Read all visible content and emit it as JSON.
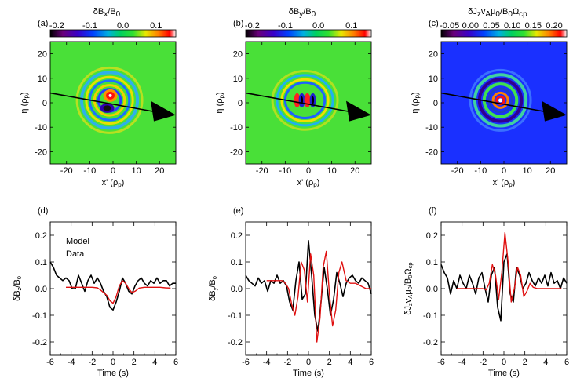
{
  "figure": {
    "panel_titles": [
      "δB",
      "δB",
      "δJ"
    ],
    "title_parts": [
      {
        "main": "δB",
        "sub": "x",
        "rest": "/B",
        "sub2": "0"
      },
      {
        "main": "δB",
        "sub": "y",
        "rest": "/B",
        "sub2": "0"
      },
      {
        "main": "δJ",
        "sub": "z",
        "rest": "v",
        "sub2": "A",
        "rest2": "μ",
        "sub3": "0",
        "rest3": "/B",
        "sub4": "0",
        "rest4": "Ω",
        "sub5": "cp"
      }
    ]
  },
  "top_panels": [
    {
      "label": "(a)",
      "colorbar_ticks": [
        "-0.2",
        "-0.1",
        "0.0",
        "0.1"
      ],
      "colorbar_range": [
        -0.22,
        0.16
      ],
      "x_ticks": [
        "-20",
        "-10",
        "0",
        "10",
        "20"
      ],
      "y_ticks": [
        "20",
        "10",
        "0",
        "-10",
        "-20"
      ],
      "xlabel": "x' (ρ",
      "xlabel_sub": "p",
      "ylabel": "η (ρ",
      "ylabel_sub": "p"
    },
    {
      "label": "(b)",
      "colorbar_ticks": [
        "-0.2",
        "-0.1",
        "0.0",
        "0.1"
      ],
      "colorbar_range": [
        -0.22,
        0.16
      ],
      "x_ticks": [
        "-20",
        "-10",
        "0",
        "10",
        "20"
      ],
      "y_ticks": [
        "20",
        "10",
        "0",
        "-10",
        "-20"
      ],
      "xlabel": "x' (ρ",
      "xlabel_sub": "p",
      "ylabel": "η (ρ",
      "ylabel_sub": "p"
    },
    {
      "label": "(c)",
      "colorbar_ticks": [
        "-0.05",
        "0.00",
        "0.05",
        "0.10",
        "0.15",
        "0.20"
      ],
      "colorbar_range": [
        -0.07,
        0.23
      ],
      "x_ticks": [
        "-20",
        "-10",
        "0",
        "10",
        "20"
      ],
      "y_ticks": [
        "20",
        "10",
        "0",
        "-10",
        "-20"
      ],
      "xlabel": "x' (ρ",
      "xlabel_sub": "p",
      "ylabel": "η (ρ",
      "ylabel_sub": "p"
    }
  ],
  "chart_data": [
    {
      "type": "heatmap",
      "panel": "(a)",
      "title": "δBx/B0",
      "xlabel": "x' (ρp)",
      "ylabel": "η (ρp)",
      "xlim": [
        -27,
        27
      ],
      "ylim": [
        -25,
        25
      ],
      "colorbar_range": [
        -0.22,
        0.16
      ],
      "arrow": {
        "from": [
          -27,
          4
        ],
        "to": [
          27,
          -5
        ]
      }
    },
    {
      "type": "heatmap",
      "panel": "(b)",
      "title": "δBy/B0",
      "xlabel": "x' (ρp)",
      "ylabel": "η (ρp)",
      "xlim": [
        -27,
        27
      ],
      "ylim": [
        -25,
        25
      ],
      "colorbar_range": [
        -0.22,
        0.16
      ],
      "arrow": {
        "from": [
          -27,
          4
        ],
        "to": [
          27,
          -5
        ]
      }
    },
    {
      "type": "heatmap",
      "panel": "(c)",
      "title": "δJz vA μ0 / B0 Ωcp",
      "xlabel": "x' (ρp)",
      "ylabel": "η (ρp)",
      "xlim": [
        -27,
        27
      ],
      "ylim": [
        -25,
        25
      ],
      "colorbar_range": [
        -0.07,
        0.23
      ],
      "arrow": {
        "from": [
          -27,
          4
        ],
        "to": [
          27,
          -5
        ]
      }
    },
    {
      "type": "line",
      "panel": "(d)",
      "xlabel": "Time (s)",
      "ylabel": "δBz/B0",
      "xlim": [
        -6,
        6
      ],
      "ylim": [
        -0.25,
        0.25
      ],
      "x_ticks": [
        "-6",
        "-4",
        "-2",
        "0",
        "2",
        "4",
        "6"
      ],
      "y_ticks": [
        "0.2",
        "0.1",
        "0.0",
        "-0.1",
        "-0.2"
      ],
      "legend": {
        "placement": "top-left",
        "entries": [
          {
            "name": "Model",
            "color": "#e01010"
          },
          {
            "name": "Data",
            "color": "#000000"
          }
        ]
      },
      "series": [
        {
          "name": "Data",
          "color": "#000000",
          "x": [
            -6,
            -5.7,
            -5.4,
            -5.1,
            -4.8,
            -4.5,
            -4.2,
            -3.9,
            -3.6,
            -3.3,
            -3,
            -2.7,
            -2.4,
            -2.1,
            -1.8,
            -1.5,
            -1.2,
            -0.9,
            -0.6,
            -0.3,
            0,
            0.3,
            0.6,
            0.9,
            1.2,
            1.5,
            1.8,
            2.1,
            2.4,
            2.7,
            3,
            3.3,
            3.6,
            3.9,
            4.2,
            4.5,
            4.8,
            5.1,
            5.4,
            5.7,
            6
          ],
          "y": [
            0.1,
            0.08,
            0.05,
            0.04,
            0.03,
            0.04,
            0.03,
            0.0,
            0.0,
            0.05,
            0.02,
            -0.01,
            0.03,
            0.05,
            0.02,
            0.04,
            0.02,
            -0.01,
            -0.03,
            -0.07,
            -0.08,
            -0.05,
            -0.01,
            0.04,
            0.02,
            -0.01,
            -0.02,
            0.01,
            0.03,
            0.04,
            0.02,
            0.01,
            0.03,
            0.02,
            0.04,
            0.02,
            0.03,
            0.03,
            0.01,
            0.02,
            0.02
          ]
        },
        {
          "name": "Model",
          "color": "#e01010",
          "x": [
            -4.5,
            -4,
            -3.5,
            -3,
            -2.5,
            -2,
            -1.5,
            -1.2,
            -0.9,
            -0.6,
            -0.3,
            0,
            0.3,
            0.6,
            0.9,
            1.2,
            1.5,
            1.8,
            2.1,
            2.5,
            3,
            3.5,
            4,
            4.5,
            5,
            5.5
          ],
          "y": [
            0.005,
            0.005,
            0.005,
            0.005,
            0.005,
            0.005,
            0.003,
            -0.005,
            -0.015,
            -0.025,
            -0.045,
            -0.055,
            -0.03,
            0.01,
            0.03,
            0.02,
            0.0,
            -0.015,
            -0.01,
            0.002,
            0.005,
            0.005,
            0.005,
            0.005,
            0.003,
            0.002
          ]
        }
      ]
    },
    {
      "type": "line",
      "panel": "(e)",
      "xlabel": "Time (s)",
      "ylabel": "δBy/B0",
      "xlim": [
        -6,
        6
      ],
      "ylim": [
        -0.25,
        0.25
      ],
      "x_ticks": [
        "-6",
        "-4",
        "-2",
        "0",
        "2",
        "4",
        "6"
      ],
      "y_ticks": [
        "0.2",
        "0.1",
        "0.0",
        "-0.1",
        "-0.2"
      ],
      "series": [
        {
          "name": "Data",
          "color": "#000000",
          "x": [
            -6,
            -5.7,
            -5.4,
            -5.1,
            -4.8,
            -4.5,
            -4.2,
            -3.9,
            -3.6,
            -3.3,
            -3,
            -2.7,
            -2.4,
            -2.1,
            -1.8,
            -1.5,
            -1.2,
            -0.9,
            -0.6,
            -0.3,
            0,
            0.3,
            0.6,
            0.9,
            1.2,
            1.5,
            1.8,
            2.1,
            2.4,
            2.7,
            3,
            3.3,
            3.6,
            3.9,
            4.2,
            4.5,
            4.8,
            5.1,
            5.4,
            5.7,
            6
          ],
          "y": [
            0.05,
            0.03,
            0.02,
            0.01,
            0.04,
            0.02,
            0.03,
            -0.01,
            0.03,
            0.02,
            0.05,
            0.02,
            0.03,
            0.01,
            -0.05,
            -0.08,
            0.03,
            0.1,
            -0.04,
            -0.02,
            0.18,
            0.05,
            -0.1,
            -0.16,
            -0.05,
            0.08,
            0.0,
            -0.1,
            -0.04,
            0.06,
            0.02,
            -0.03,
            0.02,
            0.04,
            0.05,
            0.03,
            0.02,
            0.04,
            0.03,
            0.02,
            -0.02
          ]
        },
        {
          "name": "Model",
          "color": "#e01010",
          "x": [
            -4,
            -3.5,
            -3,
            -2.5,
            -2.2,
            -1.9,
            -1.6,
            -1.3,
            -1,
            -0.7,
            -0.4,
            -0.1,
            0.2,
            0.5,
            0.8,
            1.1,
            1.4,
            1.7,
            2,
            2.3,
            2.6,
            2.9,
            3.2,
            3.6,
            4,
            4.5,
            5,
            5.5,
            6
          ],
          "y": [
            0.03,
            0.03,
            0.03,
            0.03,
            0.02,
            0.0,
            -0.06,
            -0.1,
            -0.03,
            0.1,
            0.07,
            -0.05,
            0.13,
            0.05,
            -0.2,
            -0.11,
            0.08,
            0.14,
            -0.02,
            -0.14,
            -0.08,
            0.06,
            0.1,
            0.03,
            0.02,
            0.02,
            0.01,
            0.0,
            0.0
          ]
        }
      ]
    },
    {
      "type": "line",
      "panel": "(f)",
      "xlabel": "Time (s)",
      "ylabel": "δJz vA μ0/B0 Ωcp",
      "xlim": [
        -6,
        6
      ],
      "ylim": [
        -0.25,
        0.25
      ],
      "x_ticks": [
        "-6",
        "-4",
        "-2",
        "0",
        "2",
        "4",
        "6"
      ],
      "y_ticks": [
        "0.2",
        "0.1",
        "0.0",
        "-0.1",
        "-0.2"
      ],
      "series": [
        {
          "name": "Data",
          "color": "#000000",
          "x": [
            -6,
            -5.7,
            -5.4,
            -5.1,
            -4.8,
            -4.5,
            -4.2,
            -3.9,
            -3.6,
            -3.3,
            -3,
            -2.7,
            -2.4,
            -2.1,
            -1.8,
            -1.5,
            -1.2,
            -0.9,
            -0.6,
            -0.3,
            0,
            0.3,
            0.6,
            0.9,
            1.2,
            1.5,
            1.8,
            2.1,
            2.4,
            2.7,
            3,
            3.3,
            3.6,
            3.9,
            4.2,
            4.5,
            4.8,
            5.1,
            5.4,
            5.7,
            6
          ],
          "y": [
            0.09,
            0.06,
            0.04,
            -0.02,
            0.03,
            0.0,
            0.05,
            0.02,
            0.0,
            0.05,
            0.02,
            -0.02,
            0.04,
            0.06,
            0.0,
            -0.05,
            0.05,
            0.08,
            -0.07,
            -0.12,
            0.1,
            0.13,
            -0.02,
            -0.05,
            0.08,
            0.05,
            0.0,
            0.02,
            0.06,
            0.03,
            0.01,
            0.04,
            0.02,
            0.05,
            0.01,
            0.06,
            0.02,
            0.03,
            0.0,
            0.04,
            0.02
          ]
        },
        {
          "name": "Model",
          "color": "#e01010",
          "x": [
            -4.5,
            -4,
            -3.5,
            -3,
            -2.5,
            -2,
            -1.7,
            -1.4,
            -1.1,
            -0.8,
            -0.5,
            -0.2,
            0.1,
            0.4,
            0.7,
            1,
            1.3,
            1.6,
            1.9,
            2.2,
            2.5,
            2.8,
            3.2,
            3.6,
            4,
            4.5,
            5,
            5.5
          ],
          "y": [
            0.0,
            0.0,
            0.0,
            0.0,
            0.0,
            0.0,
            -0.005,
            0.02,
            0.09,
            0.05,
            -0.04,
            0.06,
            0.21,
            0.1,
            -0.05,
            0.0,
            0.08,
            0.05,
            -0.03,
            -0.01,
            0.02,
            0.005,
            0.0,
            0.0,
            0.0,
            0.0,
            0.0,
            0.0
          ]
        }
      ]
    }
  ],
  "bottom_panels": [
    {
      "label": "(d)"
    },
    {
      "label": "(e)"
    },
    {
      "label": "(f)"
    }
  ]
}
